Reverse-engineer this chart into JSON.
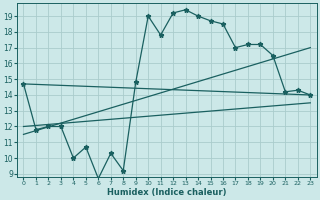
{
  "xlabel": "Humidex (Indice chaleur)",
  "bg_color": "#cce8e8",
  "grid_color": "#aacccc",
  "line_color": "#1a6060",
  "xlim": [
    -0.5,
    23.5
  ],
  "ylim": [
    8.8,
    19.8
  ],
  "yticks": [
    9,
    10,
    11,
    12,
    13,
    14,
    15,
    16,
    17,
    18,
    19
  ],
  "xticks": [
    0,
    1,
    2,
    3,
    4,
    5,
    6,
    7,
    8,
    9,
    10,
    11,
    12,
    13,
    14,
    15,
    16,
    17,
    18,
    19,
    20,
    21,
    22,
    23
  ],
  "series1_x": [
    0,
    1,
    2,
    3,
    4,
    5,
    6,
    7,
    8,
    9,
    10,
    11,
    12,
    13,
    14,
    15,
    16,
    17,
    18,
    19,
    20,
    21,
    22,
    23
  ],
  "series1_y": [
    14.7,
    11.8,
    12.0,
    12.0,
    10.0,
    10.7,
    8.7,
    10.3,
    9.2,
    14.8,
    19.0,
    17.8,
    19.2,
    19.4,
    19.0,
    18.7,
    18.5,
    17.0,
    17.2,
    17.2,
    16.5,
    14.2,
    14.3,
    14.0
  ],
  "series2_x": [
    0,
    23
  ],
  "series2_y": [
    14.7,
    14.0
  ],
  "series3_x": [
    0,
    23
  ],
  "series3_y": [
    12.0,
    13.5
  ],
  "series4_x": [
    0,
    23
  ],
  "series4_y": [
    11.5,
    17.0
  ]
}
